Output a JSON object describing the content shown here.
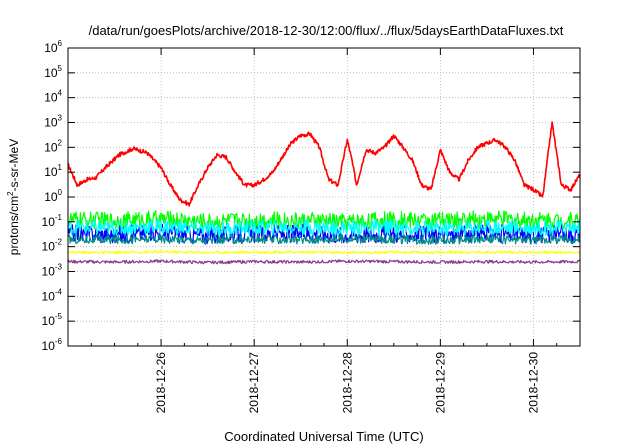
{
  "chart_data": {
    "type": "line",
    "title": "/data/run/goesPlots/archive/2018-12-30/12:00/flux/../flux/5daysEarthDataFluxes.txt",
    "xlabel": "Coordinated Universal Time (UTC)",
    "ylabel": {
      "base": "protons/cm",
      "sup": "2",
      "rest": "-s-sr-MeV"
    },
    "yscale": "log",
    "ylim": [
      1e-06,
      1000000.0
    ],
    "ytick_labels": [
      {
        "base": "10",
        "exp": "6"
      },
      {
        "base": "10",
        "exp": "5"
      },
      {
        "base": "10",
        "exp": "4"
      },
      {
        "base": "10",
        "exp": "3"
      },
      {
        "base": "10",
        "exp": "2"
      },
      {
        "base": "10",
        "exp": "1"
      },
      {
        "base": "10",
        "exp": "0"
      },
      {
        "base": "10",
        "exp": "-1"
      },
      {
        "base": "10",
        "exp": "-2"
      },
      {
        "base": "10",
        "exp": "-3"
      },
      {
        "base": "10",
        "exp": "-4"
      },
      {
        "base": "10",
        "exp": "-5"
      },
      {
        "base": "10",
        "exp": "-6"
      }
    ],
    "xlim": [
      "2018-12-25 00:00",
      "2018-12-30 12:00"
    ],
    "xtick_labels": [
      "2018-12-26",
      "2018-12-27",
      "2018-12-28",
      "2018-12-29",
      "2018-12-30"
    ],
    "grid": true,
    "series": [
      {
        "color": "#ff0000",
        "x_days": [
          0,
          0.1,
          0.2,
          0.3,
          0.4,
          0.55,
          0.7,
          0.85,
          1.0,
          1.1,
          1.2,
          1.3,
          1.4,
          1.5,
          1.6,
          1.7,
          1.8,
          1.9,
          2.0,
          2.1,
          2.2,
          2.3,
          2.4,
          2.5,
          2.6,
          2.7,
          2.8,
          2.9,
          3.0,
          3.05,
          3.1,
          3.2,
          3.3,
          3.4,
          3.5,
          3.6,
          3.7,
          3.8,
          3.9,
          4.0,
          4.1,
          4.2,
          4.3,
          4.4,
          4.5,
          4.6,
          4.7,
          4.8,
          4.9,
          5.0,
          5.1,
          5.2,
          5.3,
          5.4,
          5.5
        ],
        "y": [
          20,
          3,
          5,
          6,
          15,
          50,
          90,
          60,
          15,
          3,
          0.8,
          0.5,
          3,
          15,
          50,
          40,
          10,
          3,
          3,
          5,
          10,
          40,
          150,
          300,
          350,
          100,
          5,
          3,
          200,
          30,
          3,
          80,
          60,
          100,
          300,
          100,
          30,
          3,
          2,
          80,
          10,
          5,
          30,
          100,
          150,
          200,
          100,
          30,
          3,
          2,
          1,
          1000,
          3,
          2,
          8
        ]
      },
      {
        "color": "#00ff00",
        "x_days": [
          0,
          0.5,
          1.0,
          1.5,
          2.0,
          2.5,
          3.0,
          3.5,
          4.0,
          4.5,
          5.0,
          5.5
        ],
        "y": [
          0.12,
          0.11,
          0.13,
          0.1,
          0.12,
          0.11,
          0.1,
          0.12,
          0.11,
          0.13,
          0.12,
          0.11
        ]
      },
      {
        "color": "#0000ff",
        "x_days": [
          0,
          0.5,
          1.0,
          1.5,
          2.0,
          2.5,
          3.0,
          3.5,
          4.0,
          4.5,
          5.0,
          5.5
        ],
        "y": [
          0.035,
          0.03,
          0.04,
          0.028,
          0.032,
          0.036,
          0.03,
          0.033,
          0.029,
          0.035,
          0.031,
          0.034
        ]
      },
      {
        "color": "#00ffff",
        "x_days": [
          0,
          0.5,
          1.0,
          1.5,
          2.0,
          2.5,
          3.0,
          3.5,
          4.0,
          4.5,
          5.0,
          5.5
        ],
        "y": [
          0.06,
          0.055,
          0.065,
          0.05,
          0.058,
          0.062,
          0.055,
          0.06,
          0.052,
          0.061,
          0.057,
          0.06
        ]
      },
      {
        "color": "#008b8b",
        "x_days": [
          0,
          0.5,
          1.0,
          1.5,
          2.0,
          2.5,
          3.0,
          3.5,
          4.0,
          4.5,
          5.0,
          5.5
        ],
        "y": [
          0.02,
          0.019,
          0.021,
          0.018,
          0.02,
          0.019,
          0.021,
          0.02,
          0.018,
          0.02,
          0.019,
          0.02
        ]
      },
      {
        "color": "#ffff00",
        "x_days": [
          0,
          0.5,
          1.0,
          1.5,
          2.0,
          2.5,
          3.0,
          3.5,
          4.0,
          4.5,
          5.0,
          5.5
        ],
        "y": [
          0.006,
          0.0058,
          0.0062,
          0.0059,
          0.006,
          0.0061,
          0.0058,
          0.006,
          0.0059,
          0.0061,
          0.006,
          0.0059
        ]
      },
      {
        "color": "#8b3a8b",
        "x_days": [
          0,
          0.5,
          1.0,
          1.5,
          2.0,
          2.5,
          3.0,
          3.5,
          4.0,
          4.5,
          5.0,
          5.5
        ],
        "y": [
          0.0025,
          0.0024,
          0.0026,
          0.0023,
          0.0025,
          0.0024,
          0.0026,
          0.0025,
          0.0024,
          0.0025,
          0.0024,
          0.0025
        ]
      }
    ]
  }
}
